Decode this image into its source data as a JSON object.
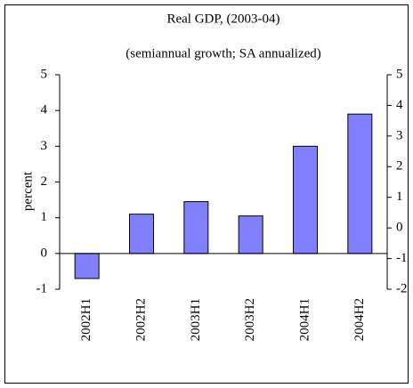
{
  "chart_data": {
    "type": "bar",
    "title": "Real GDP, (2003-04)",
    "subtitle": "(semiannual growth; SA annualized)",
    "y_label": "percent",
    "categories": [
      "2002H1",
      "2002H2",
      "2003H1",
      "2003H2",
      "2004H1",
      "2004H2"
    ],
    "values": [
      -0.7,
      1.1,
      1.45,
      1.05,
      3.0,
      3.9
    ],
    "color": "#8080ff",
    "ylim": [
      -1,
      5
    ],
    "yticks": [
      -1,
      0,
      1,
      2,
      3,
      4,
      5
    ],
    "y2lim": [
      -2,
      5
    ],
    "y2ticks": [
      -2,
      -1,
      0,
      1,
      2,
      3,
      4,
      5
    ],
    "grid": false
  }
}
